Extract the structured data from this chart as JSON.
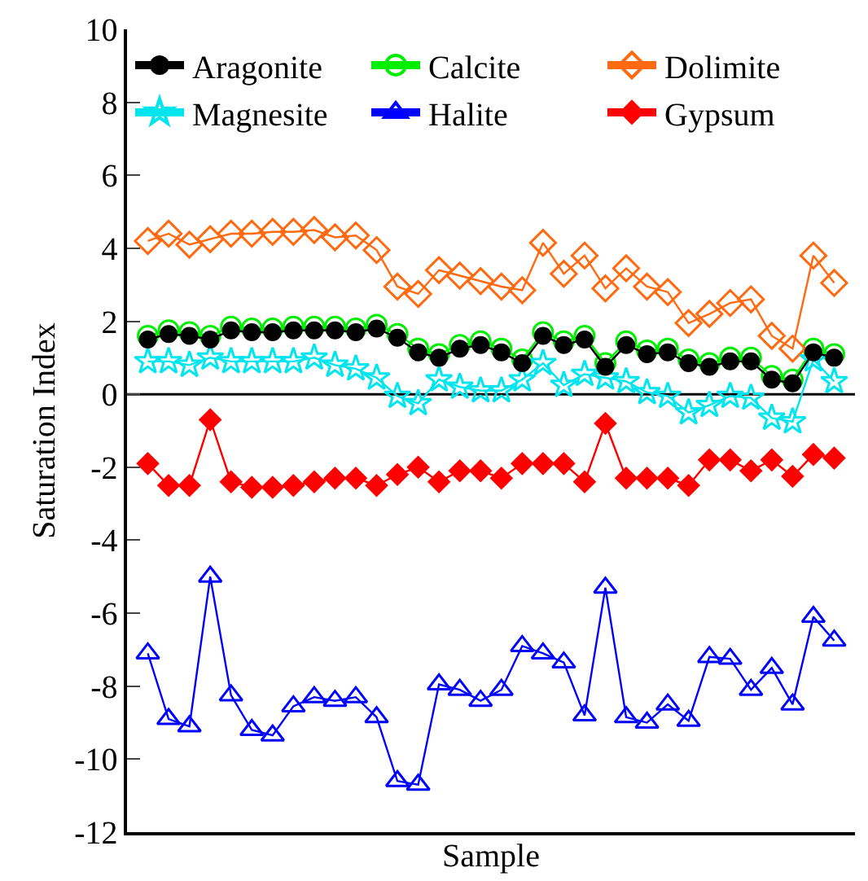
{
  "chart_data": {
    "type": "line",
    "xlabel": "Sample",
    "ylabel": "Saturation Index",
    "categories": [
      null,
      null,
      null,
      null,
      null,
      null,
      null,
      null,
      null,
      null,
      null,
      null,
      null,
      null,
      null,
      null,
      null,
      null,
      null,
      null,
      null,
      null,
      null,
      null,
      null,
      null,
      null,
      null,
      null,
      null,
      null,
      null,
      null,
      null
    ],
    "ylim": [
      -12,
      10
    ],
    "yticks": [
      -12,
      -10,
      -8,
      -6,
      -4,
      -2,
      0,
      2,
      4,
      6,
      8,
      10
    ],
    "grid": false,
    "legend": "top",
    "ref_lines": [
      {
        "axis": "y",
        "value": 0,
        "color": "#000000"
      }
    ],
    "series": [
      {
        "name": "Aragonite",
        "color": "#000000",
        "marker": "circle",
        "values": [
          1.5,
          1.65,
          1.6,
          1.5,
          1.75,
          1.7,
          1.7,
          1.75,
          1.75,
          1.75,
          1.7,
          1.8,
          1.55,
          1.15,
          1.0,
          1.25,
          1.35,
          1.15,
          0.85,
          1.6,
          1.35,
          1.5,
          0.75,
          1.35,
          1.1,
          1.15,
          0.85,
          0.75,
          0.9,
          0.9,
          0.4,
          0.3,
          1.15,
          1.0
        ]
      },
      {
        "name": "Calcite",
        "color": "#00ee00",
        "marker": "circle-open",
        "values": [
          1.6,
          1.75,
          1.7,
          1.6,
          1.85,
          1.8,
          1.8,
          1.85,
          1.85,
          1.85,
          1.8,
          1.9,
          1.65,
          1.25,
          1.1,
          1.35,
          1.45,
          1.25,
          0.95,
          1.7,
          1.45,
          1.6,
          0.85,
          1.45,
          1.2,
          1.25,
          0.95,
          0.85,
          1.0,
          1.0,
          0.5,
          0.4,
          1.25,
          1.1
        ]
      },
      {
        "name": "Dolimite",
        "color": "#ff6a10",
        "marker": "diamond-open",
        "values": [
          4.2,
          4.4,
          4.1,
          4.25,
          4.4,
          4.4,
          4.45,
          4.45,
          4.5,
          4.3,
          4.35,
          3.95,
          2.95,
          2.75,
          3.4,
          3.25,
          3.1,
          2.95,
          2.85,
          4.15,
          3.3,
          3.8,
          2.9,
          3.45,
          2.95,
          2.8,
          1.95,
          2.2,
          2.5,
          2.6,
          1.6,
          1.25,
          3.8,
          3.05
        ]
      },
      {
        "name": "Magnesite",
        "color": "#00e5ee",
        "marker": "star-open",
        "values": [
          0.9,
          0.9,
          0.8,
          1.0,
          0.9,
          0.9,
          0.9,
          0.9,
          1.0,
          0.8,
          0.7,
          0.45,
          -0.05,
          -0.25,
          0.4,
          0.2,
          0.1,
          0.1,
          0.4,
          0.85,
          0.25,
          0.55,
          0.45,
          0.35,
          0.05,
          -0.05,
          -0.5,
          -0.3,
          -0.05,
          -0.1,
          -0.65,
          -0.75,
          0.95,
          0.35
        ]
      },
      {
        "name": "Halite",
        "color": "#0000ff",
        "marker": "triangle-up-open",
        "values": [
          -7.1,
          -8.9,
          -9.1,
          -5.0,
          -8.25,
          -9.2,
          -9.35,
          -8.55,
          -8.3,
          -8.4,
          -8.3,
          -8.85,
          -10.6,
          -10.7,
          -7.95,
          -8.1,
          -8.4,
          -8.1,
          -6.9,
          -7.1,
          -7.35,
          -8.8,
          -5.3,
          -8.85,
          -9.0,
          -8.5,
          -8.95,
          -7.2,
          -7.25,
          -8.1,
          -7.5,
          -8.5,
          -6.1,
          -6.75
        ]
      },
      {
        "name": "Gypsum",
        "color": "#ff0000",
        "marker": "diamond",
        "values": [
          -1.9,
          -2.5,
          -2.5,
          -0.7,
          -2.4,
          -2.55,
          -2.55,
          -2.5,
          -2.4,
          -2.3,
          -2.3,
          -2.5,
          -2.2,
          -2.0,
          -2.4,
          -2.1,
          -2.1,
          -2.3,
          -1.9,
          -1.9,
          -1.9,
          -2.4,
          -0.8,
          -2.3,
          -2.3,
          -2.3,
          -2.5,
          -1.8,
          -1.8,
          -2.1,
          -1.8,
          -2.25,
          -1.65,
          -1.75
        ]
      }
    ]
  }
}
